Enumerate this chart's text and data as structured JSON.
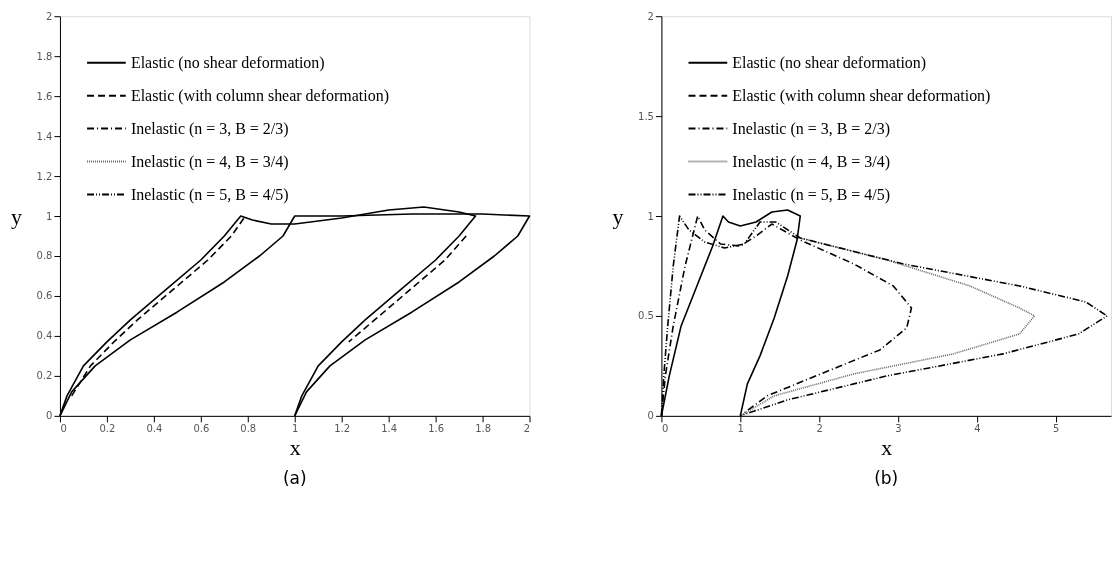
{
  "chart_data": [
    {
      "type": "line",
      "title": "(a)",
      "xlabel": "x",
      "ylabel": "y",
      "xlim": [
        0,
        2
      ],
      "ylim": [
        0,
        2
      ],
      "xticks": [
        0,
        0.2,
        0.4,
        0.6,
        0.8,
        1,
        1.2,
        1.4,
        1.6,
        1.8,
        2
      ],
      "yticks": [
        0,
        0.2,
        0.4,
        0.6,
        0.8,
        1,
        1.2,
        1.4,
        1.6,
        1.8,
        2
      ],
      "grid": false,
      "legend": "top",
      "marker": "none",
      "series": [
        {
          "name": "Elastic (no shear deformation)",
          "color": "#000000",
          "line_style": "solid",
          "x": [
            0,
            0.03,
            0.1,
            0.2,
            0.3,
            0.45,
            0.6,
            0.7,
            0.77,
            0.82,
            0.9,
            1.0,
            1.2,
            1.4,
            1.55,
            1.7,
            1.77,
            1.7,
            1.6,
            1.45,
            1.3,
            1.2,
            1.1,
            1.03,
            1,
            null,
            0,
            0.05,
            0.15,
            0.3,
            0.5,
            0.7,
            0.85,
            0.95,
            1.0,
            1.2,
            1.5,
            1.8,
            2.0,
            1.95,
            1.85,
            1.7,
            1.5,
            1.3,
            1.15,
            1.05,
            1
          ],
          "values": [
            0,
            0.1,
            0.25,
            0.37,
            0.48,
            0.63,
            0.78,
            0.9,
            1.0,
            0.98,
            0.96,
            0.96,
            0.99,
            1.03,
            1.045,
            1.02,
            1.0,
            0.9,
            0.78,
            0.63,
            0.48,
            0.37,
            0.25,
            0.1,
            0,
            null,
            0,
            0.12,
            0.25,
            0.38,
            0.52,
            0.67,
            0.8,
            0.9,
            1.0,
            1.0,
            1.01,
            1.01,
            1.0,
            0.9,
            0.8,
            0.67,
            0.52,
            0.38,
            0.25,
            0.12,
            0
          ]
        },
        {
          "name": "Elastic (with column shear deformation)",
          "color": "#000000",
          "line_style": "dashed",
          "x": [
            0.05,
            0.13,
            0.23,
            0.33,
            0.48,
            0.63,
            0.73,
            0.79,
            null,
            1.73,
            1.64,
            1.49,
            1.34,
            1.23
          ],
          "values": [
            0.1,
            0.25,
            0.37,
            0.48,
            0.63,
            0.78,
            0.9,
            1.0,
            null,
            0.9,
            0.78,
            0.63,
            0.48,
            0.37
          ]
        },
        {
          "name": "Inelastic (n = 3, B = 2/3)",
          "color": "#000000",
          "line_style": "dashdot"
        },
        {
          "name": "Inelastic (n = 4, B = 3/4)",
          "color": "#666666",
          "line_style": "dotted"
        },
        {
          "name": "Inelastic (n = 5, B = 4/5)",
          "color": "#000000",
          "line_style": "dashdotdot"
        }
      ]
    },
    {
      "type": "line",
      "title": "(b)",
      "xlabel": "x",
      "ylabel": "y",
      "xlim": [
        0,
        5.7
      ],
      "ylim": [
        0,
        2
      ],
      "xticks": [
        0,
        1,
        2,
        3,
        4,
        5
      ],
      "yticks": [
        0,
        0.5,
        1,
        1.5,
        2
      ],
      "grid": false,
      "legend": "top",
      "marker": "none",
      "series": [
        {
          "name": "Elastic (no shear deformation)",
          "color": "#000000",
          "line_style": "solid",
          "x": [
            0,
            0.1,
            0.25,
            0.45,
            0.65,
            0.78,
            0.85,
            1.0,
            1.2,
            1.4,
            1.6,
            1.76,
            1.72,
            1.6,
            1.43,
            1.25,
            1.09,
            1.0
          ],
          "values": [
            0,
            0.2,
            0.45,
            0.65,
            0.85,
            1.0,
            0.97,
            0.95,
            0.97,
            1.02,
            1.03,
            1.0,
            0.88,
            0.7,
            0.49,
            0.3,
            0.16,
            0
          ]
        },
        {
          "name": "Elastic (with column shear deformation)",
          "color": "#000000",
          "line_style": "dashed"
        },
        {
          "name": "Inelastic (n = 3, B = 2/3)",
          "color": "#000000",
          "line_style": "dashdot",
          "x": [
            0,
            0.05,
            0.15,
            0.3,
            0.46,
            0.55,
            0.75,
            1.0,
            1.2,
            1.4,
            1.76,
            2.44,
            2.94,
            3.17,
            3.11,
            2.77,
            2.02,
            1.34,
            1.0
          ],
          "values": [
            0,
            0.2,
            0.45,
            0.75,
            1.0,
            0.93,
            0.86,
            0.85,
            0.9,
            0.96,
            0.88,
            0.76,
            0.65,
            0.54,
            0.44,
            0.33,
            0.21,
            0.1,
            0
          ]
        },
        {
          "name": "Inelastic (n = 4, B = 3/4)",
          "color": "#666666",
          "line_style": "dotted",
          "x": [
            1.76,
            2.86,
            3.91,
            4.54,
            4.73,
            4.54,
            3.7,
            2.44,
            1.43,
            1.0
          ],
          "values": [
            0.89,
            0.78,
            0.65,
            0.54,
            0.5,
            0.41,
            0.31,
            0.21,
            0.1,
            0
          ]
        },
        {
          "name": "Inelastic (n = 5, B = 4/5)",
          "color": "#000000",
          "line_style": "dashdotdot",
          "x": [
            0,
            0.03,
            0.08,
            0.15,
            0.23,
            0.35,
            0.55,
            0.8,
            1.05,
            1.25,
            1.45,
            1.76,
            3.07,
            4.54,
            5.38,
            5.65,
            5.29,
            4.33,
            2.86,
            1.6,
            1.0
          ],
          "values": [
            0,
            0.2,
            0.45,
            0.75,
            1.0,
            0.93,
            0.87,
            0.84,
            0.86,
            0.97,
            0.97,
            0.89,
            0.76,
            0.65,
            0.57,
            0.5,
            0.41,
            0.31,
            0.2,
            0.08,
            0
          ]
        }
      ]
    }
  ]
}
